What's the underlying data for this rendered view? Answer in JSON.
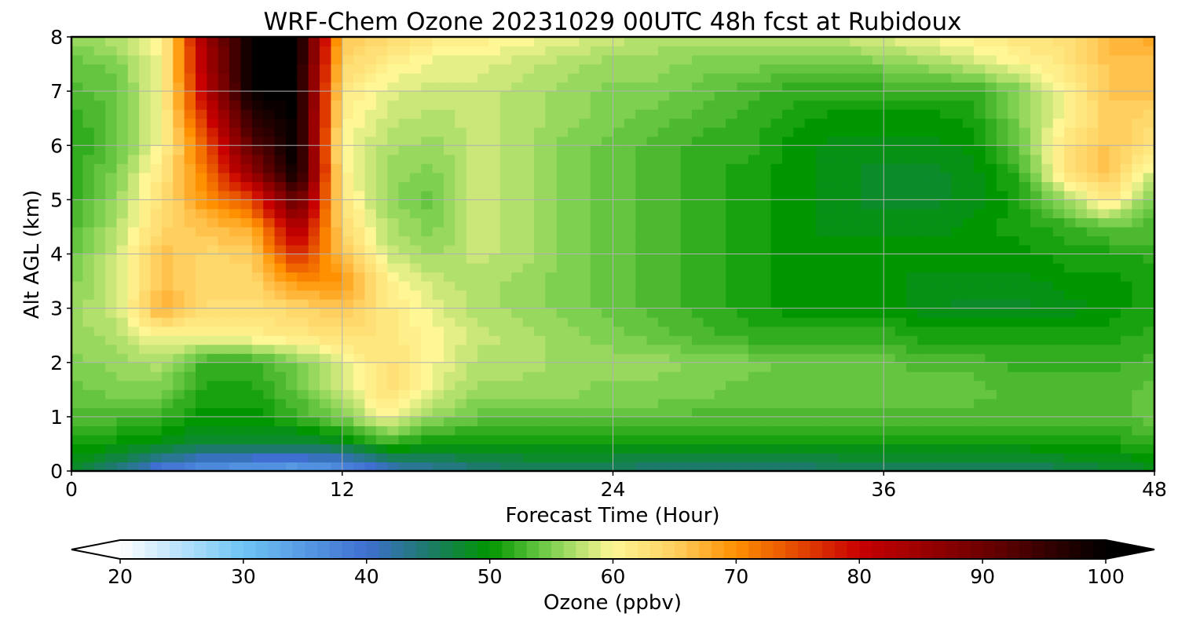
{
  "chart_data": {
    "type": "heatmap",
    "title": "WRF-Chem Ozone  20231029 00UTC 48h fcst at Rubidoux",
    "xlabel": "Forecast Time (Hour)",
    "ylabel": "Alt AGL (km)",
    "xlim": [
      0,
      48
    ],
    "ylim": [
      0,
      8
    ],
    "x_ticks": [
      "0",
      "12",
      "24",
      "36",
      "48"
    ],
    "y_ticks": [
      "0",
      "1",
      "2",
      "3",
      "4",
      "5",
      "6",
      "7",
      "8"
    ],
    "grid": true,
    "colorbar": {
      "label": "Ozone  (ppbv)",
      "range": [
        20,
        100
      ],
      "ticks": [
        "20",
        "30",
        "40",
        "50",
        "60",
        "70",
        "80",
        "90",
        "100"
      ],
      "extend": "both",
      "colors": [
        [
          20,
          "#ffffff"
        ],
        [
          30,
          "#6ec4f5"
        ],
        [
          40,
          "#3f6fd0"
        ],
        [
          45,
          "#1d7a6b"
        ],
        [
          50,
          "#009600"
        ],
        [
          55,
          "#7ed050"
        ],
        [
          60,
          "#fff796"
        ],
        [
          65,
          "#ffd060"
        ],
        [
          70,
          "#ff9000"
        ],
        [
          80,
          "#c80000"
        ],
        [
          90,
          "#6e0000"
        ],
        [
          100,
          "#000000"
        ]
      ]
    },
    "altitudes_km": [
      0,
      0.5,
      1,
      1.5,
      2,
      2.5,
      3,
      3.5,
      4,
      4.5,
      5,
      5.5,
      6,
      6.5,
      7,
      7.5,
      8
    ],
    "hours": [
      0,
      2,
      4,
      6,
      8,
      10,
      12,
      14,
      16,
      18,
      20,
      22,
      24,
      26,
      28,
      30,
      32,
      34,
      36,
      38,
      40,
      42,
      44,
      46,
      48
    ],
    "values_ppbv": [
      [
        48,
        44,
        38,
        35,
        34,
        33,
        35,
        40,
        42,
        44,
        45,
        45,
        45,
        44,
        44,
        44,
        44,
        45,
        45,
        45,
        45,
        45,
        46,
        47,
        48
      ],
      [
        51,
        50,
        49,
        47,
        47,
        47,
        48,
        52,
        50,
        50,
        50,
        50,
        50,
        50,
        50,
        50,
        50,
        50,
        50,
        50,
        50,
        50,
        51,
        51,
        52
      ],
      [
        53,
        53,
        52,
        50,
        50,
        52,
        55,
        60,
        56,
        54,
        54,
        54,
        54,
        54,
        53,
        53,
        53,
        53,
        53,
        53,
        53,
        53,
        53,
        53,
        54
      ],
      [
        54,
        55,
        55,
        51,
        51,
        54,
        58,
        63,
        59,
        56,
        56,
        56,
        55,
        55,
        55,
        54,
        54,
        54,
        54,
        54,
        54,
        53,
        53,
        53,
        54
      ],
      [
        55,
        56,
        57,
        52,
        52,
        55,
        59,
        63,
        60,
        57,
        57,
        56,
        56,
        56,
        55,
        55,
        54,
        54,
        54,
        53,
        53,
        52,
        52,
        52,
        53
      ],
      [
        56,
        57,
        60,
        60,
        61,
        62,
        63,
        62,
        60,
        58,
        57,
        56,
        55,
        54,
        53,
        52,
        52,
        52,
        52,
        51,
        51,
        51,
        51,
        51,
        52
      ],
      [
        56,
        58,
        68,
        63,
        63,
        64,
        66,
        62,
        59,
        57,
        56,
        55,
        54,
        53,
        52,
        51,
        50,
        50,
        50,
        49,
        48,
        48,
        49,
        50,
        51
      ],
      [
        55,
        58,
        66,
        64,
        64,
        70,
        70,
        61,
        58,
        57,
        56,
        55,
        54,
        53,
        52,
        51,
        50,
        50,
        50,
        49,
        49,
        49,
        50,
        50,
        51
      ],
      [
        54,
        58,
        66,
        64,
        65,
        78,
        66,
        58,
        56,
        58,
        57,
        55,
        54,
        53,
        52,
        51,
        50,
        50,
        50,
        50,
        50,
        50,
        51,
        51,
        52
      ],
      [
        53,
        57,
        64,
        66,
        68,
        84,
        64,
        57,
        55,
        58,
        57,
        55,
        54,
        53,
        52,
        51,
        50,
        49,
        49,
        49,
        50,
        51,
        52,
        54,
        53
      ],
      [
        52,
        56,
        63,
        70,
        75,
        92,
        62,
        56,
        54,
        58,
        57,
        55,
        54,
        53,
        52,
        51,
        50,
        49,
        48,
        48,
        49,
        51,
        56,
        62,
        54
      ],
      [
        52,
        55,
        62,
        72,
        86,
        100,
        61,
        56,
        55,
        58,
        57,
        55,
        54,
        53,
        52,
        51,
        50,
        49,
        48,
        48,
        49,
        52,
        62,
        66,
        58
      ],
      [
        51,
        54,
        60,
        74,
        92,
        100,
        60,
        57,
        56,
        58,
        57,
        55,
        54,
        53,
        52,
        52,
        50,
        49,
        49,
        49,
        50,
        54,
        62,
        66,
        62
      ],
      [
        52,
        54,
        60,
        78,
        96,
        100,
        61,
        58,
        57,
        58,
        57,
        56,
        55,
        54,
        53,
        52,
        51,
        50,
        50,
        50,
        51,
        55,
        60,
        65,
        64
      ],
      [
        53,
        54,
        60,
        82,
        100,
        100,
        62,
        59,
        58,
        58,
        57,
        56,
        55,
        55,
        54,
        53,
        52,
        52,
        52,
        52,
        52,
        55,
        60,
        66,
        66
      ],
      [
        54,
        55,
        60,
        84,
        100,
        100,
        64,
        61,
        59,
        59,
        58,
        57,
        56,
        56,
        55,
        55,
        54,
        54,
        55,
        56,
        58,
        60,
        62,
        66,
        66
      ],
      [
        56,
        57,
        60,
        85,
        100,
        100,
        66,
        64,
        62,
        61,
        60,
        59,
        58,
        57,
        57,
        57,
        57,
        58,
        59,
        60,
        61,
        62,
        63,
        67,
        68
      ]
    ]
  }
}
